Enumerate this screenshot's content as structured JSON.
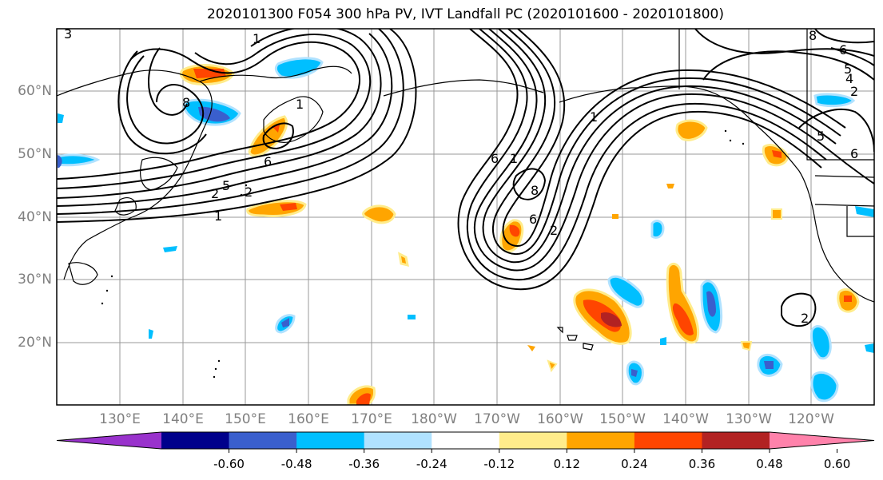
{
  "title": "2020101300 F054 300 hPa PV, IVT Landfall PC (2020101600 - 2020101800)",
  "lat_labels": [
    "60°N",
    "50°N",
    "40°N",
    "30°N",
    "20°N"
  ],
  "lon_labels": [
    "130°E",
    "140°E",
    "150°E",
    "160°E",
    "170°E",
    "180°W",
    "170°W",
    "160°W",
    "150°W",
    "140°W",
    "130°W",
    "120°W"
  ],
  "contour_labels": [
    "3",
    "1",
    "8",
    "6",
    "2",
    "1",
    "1",
    "5",
    "2",
    "6",
    "1",
    "6",
    "8",
    "2",
    "1",
    "8",
    "6",
    "5",
    "4",
    "2",
    "5",
    "6",
    "2"
  ],
  "colorbar": {
    "ticks": [
      "-0.60",
      "-0.48",
      "-0.36",
      "-0.24",
      "-0.12",
      "0.12",
      "0.24",
      "0.36",
      "0.48",
      "0.60"
    ],
    "colors": [
      "#9932cc",
      "#00008b",
      "#3a5fcd",
      "#00bfff",
      "#b0e2ff",
      "#ffffff",
      "#ffec8b",
      "#ffa500",
      "#ff4500",
      "#b22222",
      "#ff82ab"
    ]
  }
}
